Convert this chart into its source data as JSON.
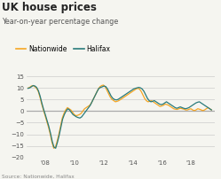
{
  "title": "UK house prices",
  "subtitle": "Year-on-year percentage change",
  "source": "Source: Nationwide, Halifax",
  "background_color": "#f5f5f0",
  "plot_bg_color": "#f5f5f0",
  "ylim": [
    -20,
    17
  ],
  "yticks": [
    -20,
    -15,
    -10,
    -5,
    0,
    5,
    10,
    15
  ],
  "xtick_labels": [
    "'08",
    "'10",
    "'12",
    "'14",
    "'16",
    "'18"
  ],
  "xtick_positions": [
    2008,
    2010,
    2012,
    2014,
    2016,
    2018
  ],
  "xlim": [
    2006.7,
    2019.6
  ],
  "nationwide_color": "#f5a623",
  "halifax_color": "#2a7b7b",
  "legend_labels": [
    "Nationwide",
    "Halifax"
  ],
  "nationwide": [
    9.9,
    10.2,
    10.8,
    11.0,
    10.5,
    9.8,
    8.5,
    6.0,
    3.0,
    0.5,
    -2.0,
    -4.5,
    -7.0,
    -10.0,
    -13.5,
    -16.0,
    -15.5,
    -13.0,
    -10.0,
    -6.5,
    -3.0,
    -1.0,
    0.5,
    1.5,
    1.0,
    0.5,
    -0.5,
    -1.5,
    -2.0,
    -1.8,
    -1.5,
    -1.0,
    0.0,
    1.0,
    1.5,
    2.0,
    2.5,
    3.5,
    5.0,
    6.5,
    8.0,
    9.5,
    10.5,
    11.0,
    11.2,
    10.5,
    9.0,
    7.5,
    6.0,
    5.0,
    4.5,
    4.0,
    4.2,
    4.5,
    5.0,
    5.5,
    6.0,
    6.5,
    7.0,
    7.5,
    8.0,
    8.5,
    9.0,
    9.5,
    9.8,
    9.5,
    8.5,
    7.0,
    5.5,
    4.5,
    4.0,
    4.2,
    4.5,
    4.0,
    3.5,
    3.0,
    2.5,
    2.0,
    2.2,
    2.5,
    3.0,
    2.8,
    2.5,
    2.0,
    1.5,
    1.0,
    0.8,
    0.7,
    1.0,
    1.2,
    1.0,
    0.8,
    0.5,
    0.5,
    0.8,
    1.0,
    0.5,
    0.2,
    0.5,
    1.0,
    0.8,
    0.5,
    0.2,
    0.5,
    1.0,
    1.5,
    1.0,
    0.5
  ],
  "halifax": [
    9.8,
    10.0,
    10.5,
    11.0,
    10.8,
    10.2,
    8.8,
    6.5,
    3.5,
    0.8,
    -1.5,
    -4.0,
    -6.5,
    -9.5,
    -13.0,
    -15.5,
    -16.0,
    -13.5,
    -10.5,
    -7.0,
    -3.5,
    -1.5,
    0.0,
    1.0,
    0.5,
    -0.5,
    -1.5,
    -2.0,
    -2.5,
    -2.8,
    -3.0,
    -2.5,
    -1.5,
    -0.5,
    0.5,
    1.5,
    2.5,
    4.0,
    5.5,
    7.0,
    8.5,
    9.8,
    10.2,
    10.5,
    10.8,
    10.5,
    9.5,
    8.0,
    6.5,
    5.5,
    5.0,
    4.8,
    5.0,
    5.5,
    6.0,
    6.5,
    7.0,
    7.5,
    8.0,
    8.5,
    9.0,
    9.5,
    9.8,
    10.0,
    10.2,
    10.0,
    9.5,
    8.5,
    7.0,
    5.5,
    4.5,
    4.0,
    4.2,
    4.5,
    4.0,
    3.5,
    3.0,
    2.8,
    3.0,
    3.5,
    4.0,
    3.5,
    3.0,
    2.5,
    2.0,
    1.5,
    1.2,
    1.5,
    1.8,
    1.5,
    1.2,
    1.0,
    1.2,
    1.5,
    2.0,
    2.5,
    3.0,
    3.5,
    3.8,
    4.0,
    3.5,
    3.0,
    2.5,
    2.0,
    1.5,
    1.0,
    0.5
  ]
}
